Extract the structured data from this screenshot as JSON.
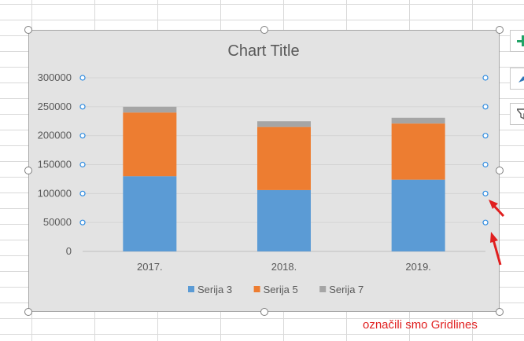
{
  "annotation": "označili smo Gridlines",
  "colors": {
    "chart_background": "#e3e3e3",
    "gridline": "#d4d4d4",
    "gridline_handle": "#2e8be0",
    "arrow": "#e01f1f",
    "series": [
      "#5b9bd5",
      "#ed7d31",
      "#a5a5a5"
    ]
  },
  "side_buttons": [
    {
      "icon": "plus-icon"
    },
    {
      "icon": "brush-icon"
    },
    {
      "icon": "filter-icon"
    }
  ],
  "chart_data": {
    "type": "bar",
    "stacked": true,
    "title": "Chart Title",
    "categories": [
      "2017.",
      "2018.",
      "2019."
    ],
    "series": [
      {
        "name": "Serija 3",
        "values": [
          130000,
          106000,
          124000
        ]
      },
      {
        "name": "Serija 5",
        "values": [
          110000,
          109000,
          97000
        ]
      },
      {
        "name": "Serija 7",
        "values": [
          10000,
          10000,
          10000
        ]
      }
    ],
    "ylim": [
      0,
      300000
    ],
    "yticks": [
      "0",
      "50000",
      "100000",
      "150000",
      "200000",
      "250000",
      "300000"
    ],
    "grid": true,
    "legend": "bottom",
    "xlabel": "",
    "ylabel": ""
  }
}
